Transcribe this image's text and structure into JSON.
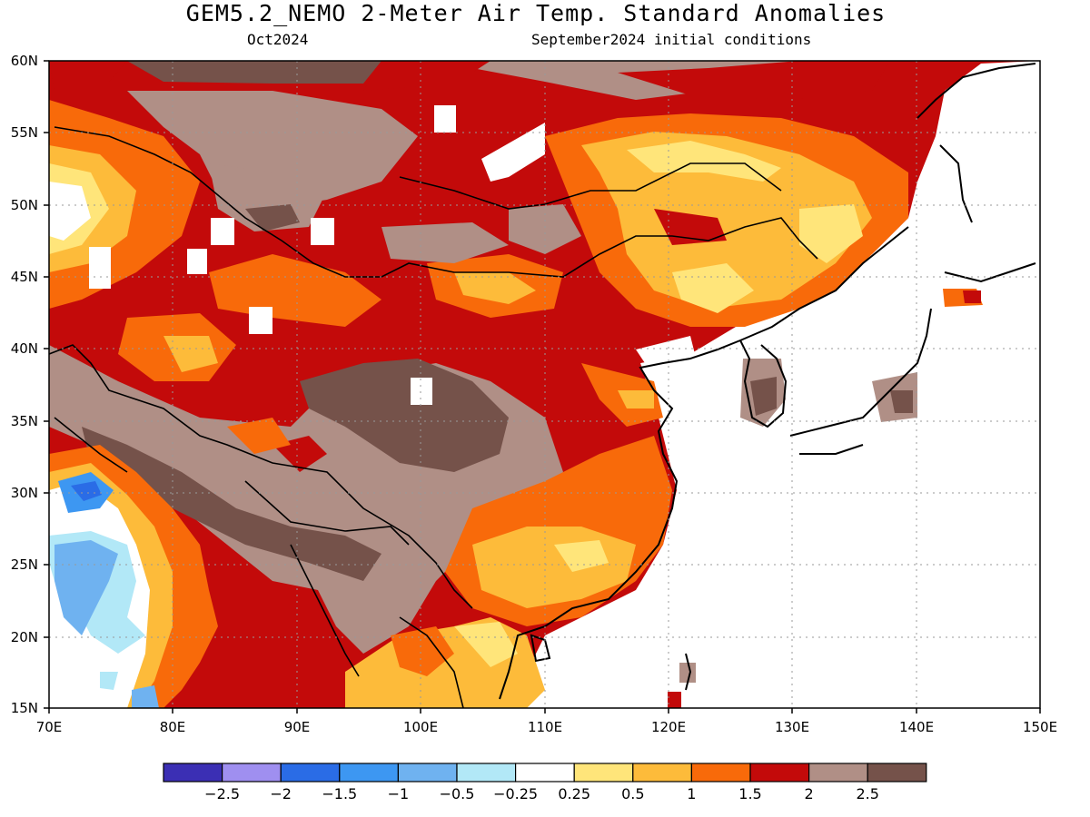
{
  "title": "GEM5.2_NEMO 2-Meter Air Temp. Standard Anomalies",
  "valid_month": "Oct2024",
  "initial_conditions": "September2024 initial conditions",
  "lat_labels": [
    "60N",
    "55N",
    "50N",
    "45N",
    "40N",
    "35N",
    "30N",
    "25N",
    "20N",
    "15N"
  ],
  "lon_labels": [
    "70E",
    "80E",
    "90E",
    "100E",
    "110E",
    "120E",
    "130E",
    "140E",
    "150E"
  ],
  "colorbar": {
    "colors": [
      "#3b2fb4",
      "#9f8ff0",
      "#2a6ce6",
      "#3d97f2",
      "#6fb2f0",
      "#b2e8f7",
      "#ffffff",
      "#ffe57a",
      "#fdbb3a",
      "#f86a0a",
      "#c30a0a",
      "#b08f86",
      "#75524a"
    ],
    "labels": [
      "−2.5",
      "−2",
      "−1.5",
      "−1",
      "−0.5",
      "−0.25",
      "0.25",
      "0.5",
      "1",
      "1.5",
      "2",
      "2.5"
    ]
  },
  "palette": {
    "dark_brown": "#75524a",
    "light_brown": "#b08f86",
    "red": "#c30a0a",
    "orange": "#f86a0a",
    "light_orange": "#fdbb3a",
    "yellow": "#ffe57a",
    "light_blue": "#6fb2f0",
    "mid_blue": "#3d97f2",
    "blue": "#2a6ce6",
    "pale_blue": "#b2e8f7"
  }
}
